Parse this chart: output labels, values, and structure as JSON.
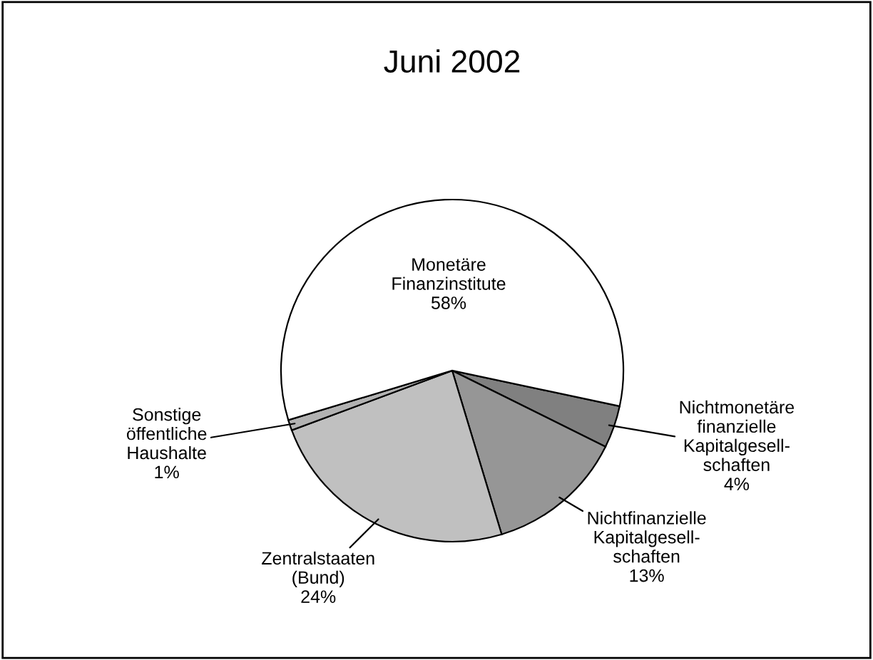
{
  "chart_data": {
    "type": "pie",
    "title": "Juni 2002",
    "categories": [
      "Nichtmonetäre\nfinanzielle\nKapitalgesell-\nschaften",
      "Nichtfinanzielle\nKapitalgesell-\nschaften",
      "Zentralstaaten\n(Bund)",
      "Sonstige\nöffentliche\nHaushalte",
      "Monetäre\nFinanzinstitute"
    ],
    "values": [
      4,
      13,
      24,
      1,
      58
    ],
    "value_labels": [
      "4%",
      "13%",
      "24%",
      "1%",
      "58%"
    ],
    "colors": [
      "#808080",
      "#969696",
      "#c0c0c0",
      "#b2b2b2",
      "#ffffff"
    ]
  }
}
